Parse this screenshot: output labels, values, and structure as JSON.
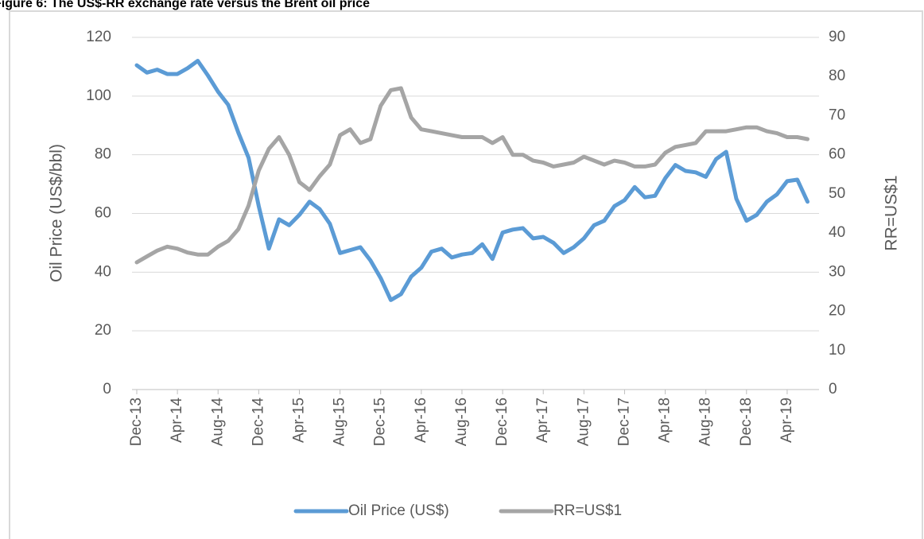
{
  "chart_data": {
    "type": "line",
    "title": "Figure 6: The US$-RR exchange rate versus the Brent oil price",
    "y_label": "Oil Price (US$/bbl)",
    "y2_label": "RR=US$1",
    "categories": [
      "Dec-13",
      null,
      null,
      null,
      "Apr-14",
      null,
      null,
      null,
      "Aug-14",
      null,
      null,
      null,
      "Dec-14",
      null,
      null,
      null,
      "Apr-15",
      null,
      null,
      null,
      "Aug-15",
      null,
      null,
      null,
      "Dec-15",
      null,
      null,
      null,
      "Apr-16",
      null,
      null,
      null,
      "Aug-16",
      null,
      null,
      null,
      "Dec-16",
      null,
      null,
      null,
      "Apr-17",
      null,
      null,
      null,
      "Aug-17",
      null,
      null,
      null,
      "Dec-17",
      null,
      null,
      null,
      "Apr-18",
      null,
      null,
      null,
      "Aug-18",
      null,
      null,
      null,
      "Dec-18",
      null,
      null,
      null,
      "Apr-19",
      null,
      null
    ],
    "series": [
      {
        "name": "Oil Price (US$)",
        "color": "#5b9bd5",
        "axis": "y",
        "values": [
          110.5,
          108,
          109,
          107.5,
          107.5,
          109.5,
          112,
          107,
          101.5,
          97,
          87.5,
          79,
          62.5,
          48,
          58,
          56,
          59.5,
          64,
          61.5,
          56.5,
          46.5,
          47.5,
          48.5,
          44,
          38,
          30.5,
          32.5,
          38.5,
          41.5,
          47,
          48,
          45,
          46,
          46.5,
          49.5,
          44.5,
          53.5,
          54.5,
          55,
          51.5,
          52,
          50,
          46.5,
          48.5,
          51.5,
          56,
          57.5,
          62.5,
          64.5,
          69,
          65.5,
          66,
          72,
          76.5,
          74.5,
          74,
          72.5,
          78.5,
          81,
          65,
          57.5,
          59.5,
          64,
          66.5,
          71,
          71.5,
          64
        ]
      },
      {
        "name": "RR=US$1",
        "color": "#a5a5a5",
        "axis": "y2",
        "values": [
          32.5,
          34,
          35.5,
          36.5,
          36,
          35,
          34.5,
          34.5,
          36.5,
          38,
          41,
          47,
          56,
          61.5,
          64.5,
          60,
          53,
          51,
          54.5,
          57.5,
          65,
          66.5,
          63,
          64,
          72.5,
          76.5,
          77,
          69.5,
          66.5,
          66,
          65.5,
          65,
          64.5,
          64.5,
          64.5,
          63,
          64.5,
          60,
          60,
          58.5,
          58,
          57,
          57.5,
          58,
          59.5,
          58.5,
          57.5,
          58.5,
          58,
          57,
          57,
          57.5,
          60.5,
          62,
          62.5,
          63,
          66,
          66,
          66,
          66.5,
          67,
          67,
          66,
          65.5,
          64.5,
          64.5,
          64
        ]
      }
    ],
    "ylim": [
      0,
      120
    ],
    "yticks": [
      0,
      20,
      40,
      60,
      80,
      100,
      120
    ],
    "y2lim": [
      0,
      90
    ],
    "y2ticks": [
      0,
      10,
      20,
      30,
      40,
      50,
      60,
      70,
      80,
      90
    ],
    "grid": true,
    "legend": "bottom"
  }
}
